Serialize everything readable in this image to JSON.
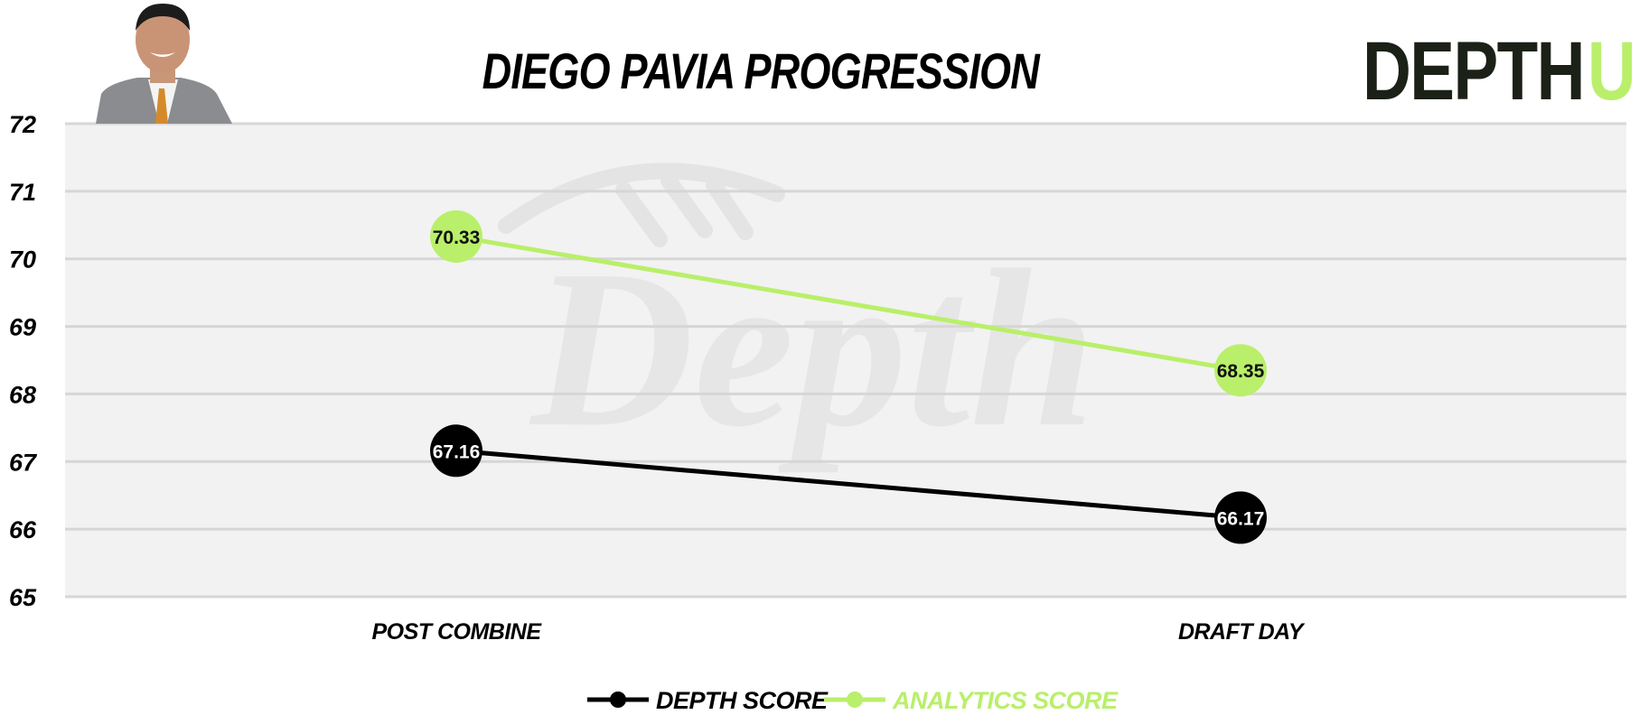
{
  "chart_data": {
    "type": "line",
    "title": "DIEGO PAVIA PROGRESSION",
    "categories": [
      "POST COMBINE",
      "DRAFT DAY"
    ],
    "series": [
      {
        "name": "DEPTH SCORE",
        "values": [
          67.16,
          66.17
        ],
        "color": "#000000",
        "label_color": "#ffffff"
      },
      {
        "name": "ANALYTICS SCORE",
        "values": [
          70.33,
          68.35
        ],
        "color": "#b9ef6a",
        "label_color": "#111111"
      }
    ],
    "ylim": [
      65,
      72
    ],
    "yticks": [
      65,
      66,
      67,
      68,
      69,
      70,
      71,
      72
    ],
    "grid": true,
    "legend": "bottom",
    "xlabel": "",
    "ylabel": ""
  },
  "brand": {
    "name_dark": "DEPTH",
    "name_accent": "U",
    "dark_color": "#1c2118",
    "accent_color": "#b9ef6a"
  },
  "watermark": {
    "text": "Depth",
    "icon": "football-icon"
  },
  "player_photo": {
    "icon": "player-headshot"
  },
  "colors": {
    "plot_bg": "#f2f2f2",
    "grid": "#d6d6d6"
  }
}
